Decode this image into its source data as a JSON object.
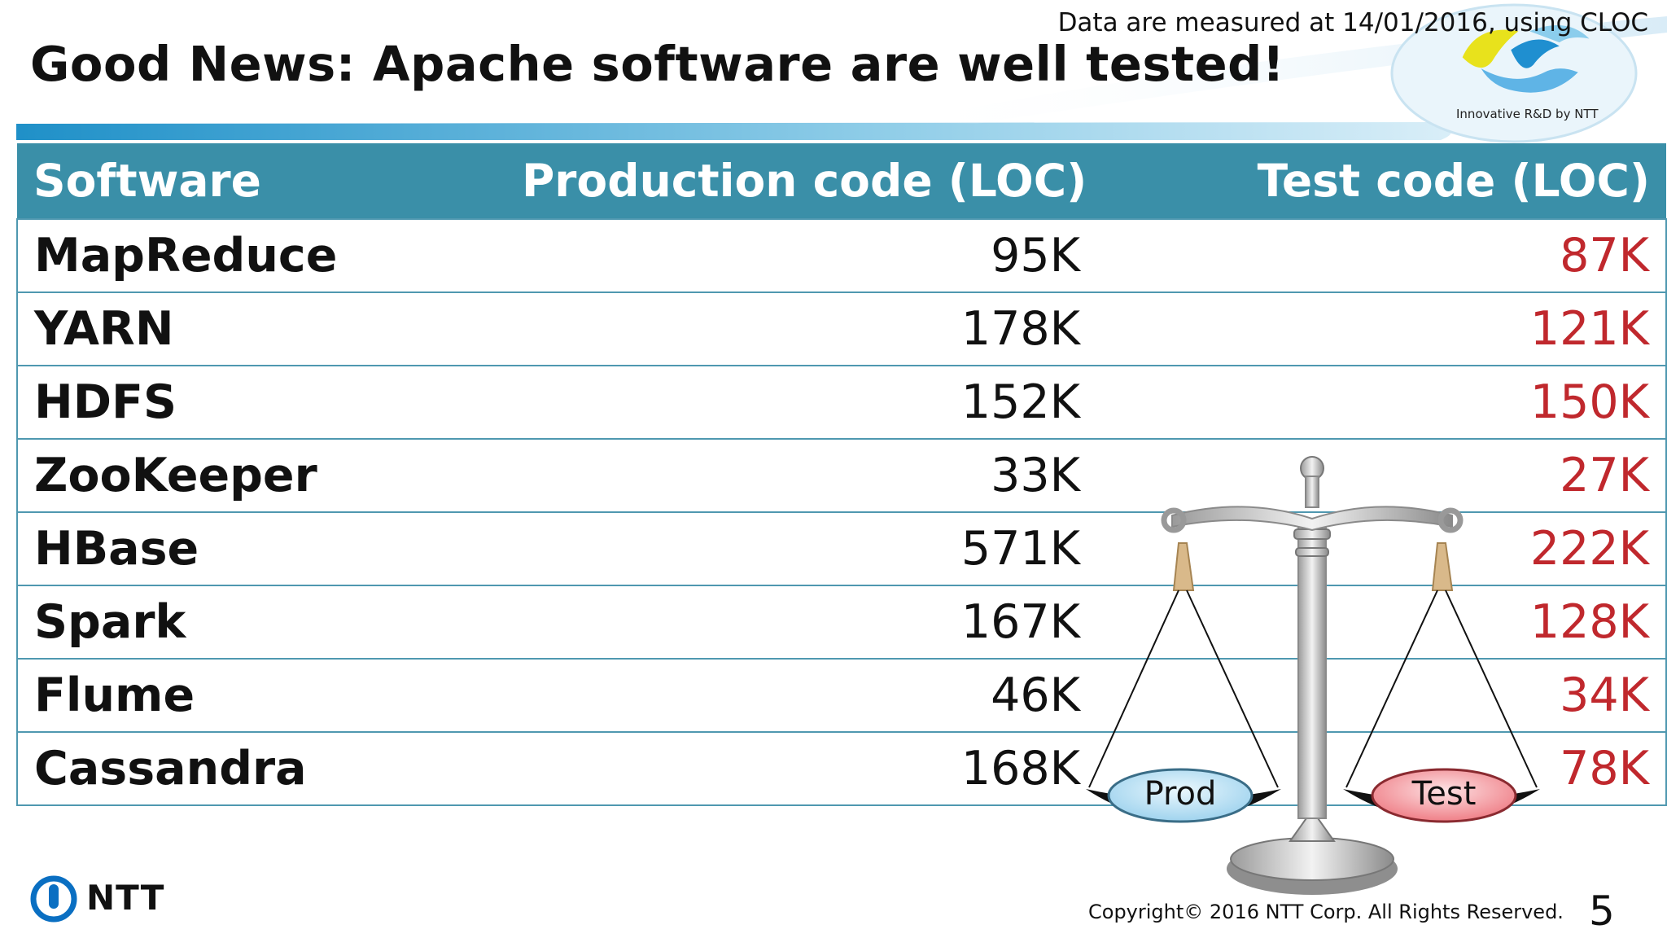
{
  "header": {
    "title": "Good News: Apache software are well tested!",
    "note": "Data are measured at 14/01/2016, using CLOC",
    "tagline": "Innovative R&D by NTT"
  },
  "table": {
    "columns": [
      "Software",
      "Production code (LOC)",
      "Test code (LOC)"
    ],
    "rows": [
      {
        "name": "MapReduce",
        "prod": "95K",
        "test": "87K"
      },
      {
        "name": "YARN",
        "prod": "178K",
        "test": "121K"
      },
      {
        "name": "HDFS",
        "prod": "152K",
        "test": "150K"
      },
      {
        "name": "ZooKeeper",
        "prod": "33K",
        "test": "27K"
      },
      {
        "name": "HBase",
        "prod": "571K",
        "test": "222K"
      },
      {
        "name": "Spark",
        "prod": "167K",
        "test": "128K"
      },
      {
        "name": "Flume",
        "prod": "46K",
        "test": "34K"
      },
      {
        "name": "Cassandra",
        "prod": "168K",
        "test": "78K"
      }
    ]
  },
  "scale": {
    "left_pan": "Prod",
    "right_pan": "Test"
  },
  "footer": {
    "logo": "NTT",
    "copyright": "Copyright© 2016  NTT Corp. All Rights Reserved.",
    "page_number": "5"
  },
  "colors": {
    "header_band": "#3a8fa8",
    "test_value": "#c0282d",
    "prod_pan": "#bfe4f6",
    "test_pan": "#f6a3a8"
  },
  "icons": {
    "ntt_logo": "ntt-logo-icon",
    "swirl_logo": "innovative-swirl-icon",
    "scale": "balance-scale-icon"
  }
}
